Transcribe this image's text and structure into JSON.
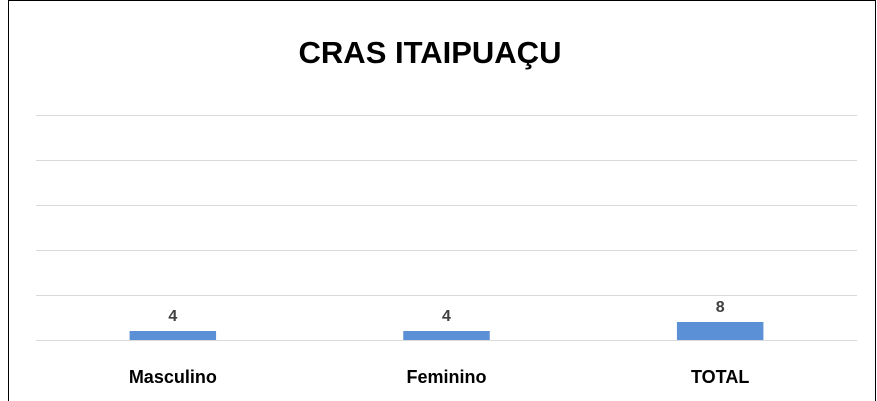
{
  "chart_data": {
    "type": "bar",
    "title": "CRAS ITAIPUAÇU",
    "categories": [
      "Masculino",
      "Feminino",
      "TOTAL"
    ],
    "values": [
      4,
      4,
      8
    ],
    "color": "#5b8fd6",
    "ylim": [
      0,
      100
    ],
    "yticks": [
      0,
      20,
      40,
      60,
      80,
      100
    ],
    "grid": true,
    "ytick_labels": false
  }
}
